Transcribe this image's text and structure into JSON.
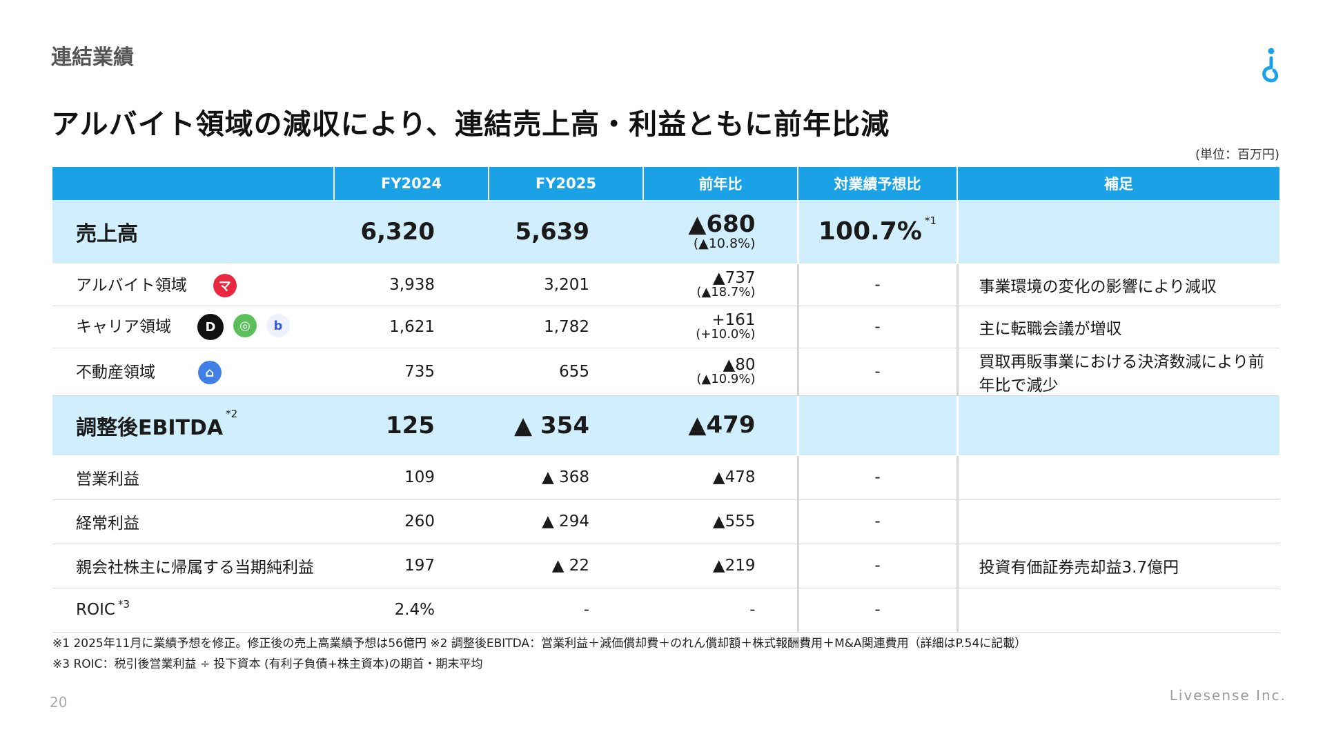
{
  "header": {
    "section": "連結業績",
    "title": "アルバイト領域の減収により、連結売上高・利益ともに前年比減",
    "unit": "(単位：百万円)"
  },
  "table": {
    "columns": [
      "",
      "FY2024",
      "FY2025",
      "前年比",
      "対業績予想比",
      "補足"
    ],
    "rows": {
      "sales": {
        "label": "売上高",
        "fy2024": "6,320",
        "fy2025": "5,639",
        "yoy": "▲680",
        "yoy_pct": "(▲10.8%)",
        "vs_forecast": "100.7%",
        "mark": "*1",
        "note": ""
      },
      "baito": {
        "label": "アルバイト領域",
        "fy2024": "3,938",
        "fy2025": "3,201",
        "yoy": "▲737",
        "yoy_pct": "(▲18.7%)",
        "vs_forecast": "-",
        "note": "事業環境の変化の影響により減収"
      },
      "career": {
        "label": "キャリア領域",
        "fy2024": "1,621",
        "fy2025": "1,782",
        "yoy": "+161",
        "yoy_pct": "(+10.0%)",
        "vs_forecast": "-",
        "note": "主に転職会議が増収"
      },
      "realestate": {
        "label": "不動産領域",
        "fy2024": "735",
        "fy2025": "655",
        "yoy": "▲80",
        "yoy_pct": "(▲10.9%)",
        "vs_forecast": "-",
        "note": "買取再販事業における決済数減により前年比で減少"
      },
      "ebitda": {
        "label": "調整後EBITDA",
        "mark": "*2",
        "fy2024": "125",
        "fy2025": "▲ 354",
        "yoy": "▲479",
        "vs_forecast": "",
        "note": ""
      },
      "op": {
        "label": "営業利益",
        "fy2024": "109",
        "fy2025": "▲ 368",
        "yoy": "▲478",
        "vs_forecast": "-",
        "note": ""
      },
      "ordinary": {
        "label": "経常利益",
        "fy2024": "260",
        "fy2025": "▲ 294",
        "yoy": "▲555",
        "vs_forecast": "-",
        "note": ""
      },
      "net": {
        "label": "親会社株主に帰属する当期純利益",
        "fy2024": "197",
        "fy2025": "▲ 22",
        "yoy": "▲219",
        "vs_forecast": "-",
        "note": "投資有価証券売却益3.7億円"
      },
      "roic": {
        "label": "ROIC",
        "mark": "*3",
        "fy2024": "2.4%",
        "fy2025": "-",
        "yoy": "-",
        "vs_forecast": "-",
        "note": ""
      }
    },
    "icons": {
      "baito": [
        {
          "name": "machbaito-icon",
          "glyph": "マ",
          "color": "#e8283e"
        }
      ],
      "career": [
        {
          "name": "doda-icon",
          "glyph": "D",
          "color": "#111111"
        },
        {
          "name": "tenshoku-kaigi-icon",
          "glyph": "◎",
          "color": "#5bbf5b"
        },
        {
          "name": "b-icon",
          "glyph": "b",
          "color": "#3a5bd9"
        }
      ],
      "realestate": [
        {
          "name": "ie-icon",
          "glyph": "⌂",
          "color": "#3f7fe6"
        }
      ]
    }
  },
  "footnotes": {
    "line1": "※1 2025年11月に業績予想を修正。修正後の売上高業績予想は56億円 ※2 調整後EBITDA：営業利益＋減価償却費＋のれん償却額＋株式報酬費用＋M&A関連費用（詳細はP.54に記載）",
    "line2": "※3 ROIC：税引後営業利益 ÷ 投下資本 (有利子負債+株主資本)の期首・期末平均"
  },
  "footer": {
    "page": "20",
    "company": "Livesense Inc."
  },
  "colors": {
    "header": "#1aa1e6",
    "highlight": "#d0eefb"
  }
}
